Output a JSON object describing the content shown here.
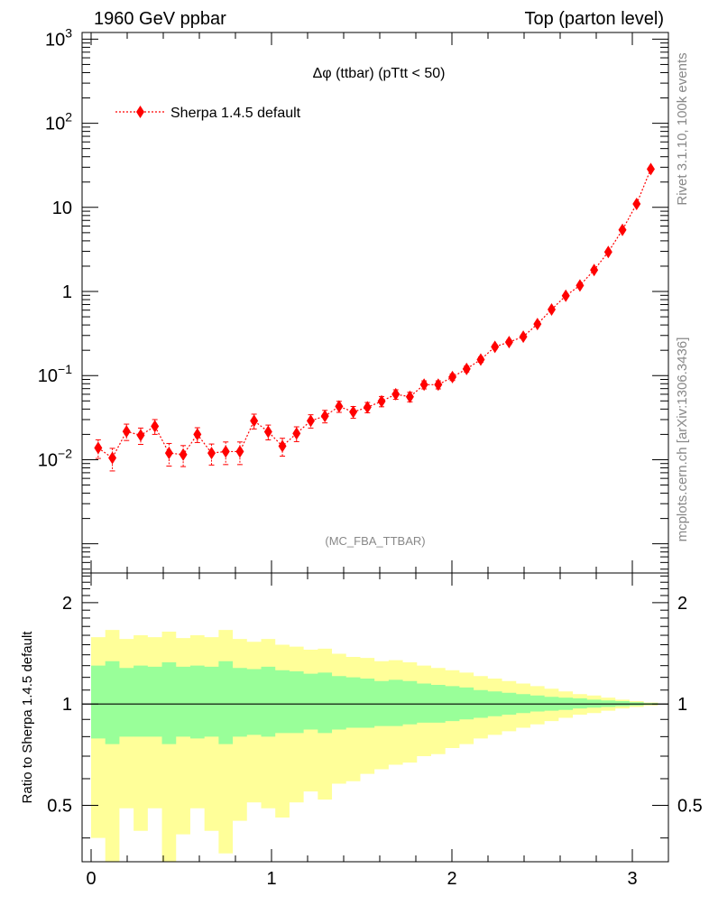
{
  "header": {
    "left": "1960 GeV ppbar",
    "right": "Top (parton level)"
  },
  "side_labels": {
    "rivet": "Rivet 3.1.10,  100k events",
    "mcplots": "mcplots.cern.ch [arXiv:1306.3436]"
  },
  "colors": {
    "series": "#ff0000",
    "band_inner": "#99ff99",
    "band_outer": "#ffff99",
    "reference_line": "#000000"
  },
  "chart_data": [
    {
      "type": "scatter",
      "title": "Δφ (ttbar) (pTtt < 50)",
      "title_symbol": "Δφ",
      "title_text": " (ttbar) (pTtt < 50)",
      "analysis_label": "(MC_FBA_TTBAR)",
      "xlabel": "",
      "ylabel": "",
      "y_scale": "log",
      "xlim": [
        -0.05,
        3.2
      ],
      "ylim": [
        0.00045,
        1200
      ],
      "y_ticks": [
        {
          "value": 0.01,
          "base": "10",
          "exp": "−2"
        },
        {
          "value": 0.1,
          "base": "10",
          "exp": "−1"
        },
        {
          "value": 1,
          "base": "1",
          "exp": ""
        },
        {
          "value": 10,
          "base": "10",
          "exp": ""
        },
        {
          "value": 100,
          "base": "10",
          "exp": "2"
        },
        {
          "value": 1000,
          "base": "10",
          "exp": "3"
        }
      ],
      "legend_position": "top-left",
      "series": [
        {
          "name": "Sherpa 1.4.5 default",
          "x": [
            0.0393,
            0.1178,
            0.1963,
            0.2749,
            0.3534,
            0.432,
            0.5105,
            0.589,
            0.6676,
            0.7461,
            0.8247,
            0.9032,
            0.9817,
            1.0603,
            1.1388,
            1.2174,
            1.2959,
            1.3744,
            1.453,
            1.5315,
            1.6101,
            1.6886,
            1.7671,
            1.8457,
            1.9242,
            2.0028,
            2.0813,
            2.1598,
            2.2384,
            2.3169,
            2.3955,
            2.474,
            2.5525,
            2.6311,
            2.7096,
            2.7882,
            2.8667,
            2.9452,
            3.0238,
            3.1023
          ],
          "values": [
            0.0138,
            0.0105,
            0.0217,
            0.0195,
            0.025,
            0.012,
            0.0115,
            0.02,
            0.012,
            0.0125,
            0.0125,
            0.029,
            0.0215,
            0.0145,
            0.0205,
            0.029,
            0.033,
            0.043,
            0.037,
            0.042,
            0.0495,
            0.06,
            0.056,
            0.078,
            0.078,
            0.096,
            0.12,
            0.155,
            0.22,
            0.25,
            0.29,
            0.41,
            0.61,
            0.89,
            1.18,
            1.8,
            2.95,
            5.4,
            11.0,
            28.5
          ],
          "rel_err": [
            0.25,
            0.3,
            0.22,
            0.22,
            0.2,
            0.3,
            0.28,
            0.2,
            0.28,
            0.3,
            0.3,
            0.2,
            0.2,
            0.24,
            0.2,
            0.18,
            0.17,
            0.15,
            0.16,
            0.14,
            0.14,
            0.13,
            0.13,
            0.11,
            0.11,
            0.09,
            0.08,
            0.07,
            0.06,
            0.06,
            0.05,
            0.045,
            0.035,
            0.03,
            0.025,
            0.02,
            0.016,
            0.012,
            0.008,
            0.005
          ]
        }
      ]
    },
    {
      "type": "area",
      "ylabel": "Ratio to Sherpa 1.4.5 default",
      "y_scale": "log",
      "xlim": [
        -0.05,
        3.2
      ],
      "ylim": [
        0.34,
        2.45
      ],
      "x_ticks": [
        0,
        1,
        2,
        3
      ],
      "y_ticks": [
        0.5,
        1,
        2
      ],
      "reference_value": 1,
      "bin_edges": [
        0.0,
        0.0785,
        0.1571,
        0.2356,
        0.3142,
        0.3927,
        0.4712,
        0.5498,
        0.6283,
        0.7069,
        0.7854,
        0.8639,
        0.9425,
        1.021,
        1.0996,
        1.1781,
        1.2566,
        1.3352,
        1.4137,
        1.4923,
        1.5708,
        1.6493,
        1.7279,
        1.8064,
        1.885,
        1.9635,
        2.042,
        2.1206,
        2.1991,
        2.2777,
        2.3562,
        2.4347,
        2.5133,
        2.5918,
        2.6704,
        2.7489,
        2.8274,
        2.906,
        2.9845,
        3.0631,
        3.1416
      ],
      "inner_band": {
        "lower": [
          0.79,
          0.76,
          0.8,
          0.8,
          0.8,
          0.76,
          0.8,
          0.79,
          0.8,
          0.76,
          0.8,
          0.81,
          0.8,
          0.82,
          0.82,
          0.84,
          0.82,
          0.84,
          0.85,
          0.85,
          0.86,
          0.86,
          0.87,
          0.88,
          0.88,
          0.89,
          0.9,
          0.91,
          0.92,
          0.93,
          0.94,
          0.95,
          0.955,
          0.96,
          0.97,
          0.975,
          0.98,
          0.985,
          0.99,
          0.995
        ],
        "upper": [
          1.3,
          1.34,
          1.28,
          1.3,
          1.29,
          1.33,
          1.29,
          1.3,
          1.29,
          1.34,
          1.28,
          1.27,
          1.29,
          1.26,
          1.25,
          1.23,
          1.24,
          1.21,
          1.2,
          1.19,
          1.17,
          1.18,
          1.17,
          1.15,
          1.14,
          1.13,
          1.12,
          1.1,
          1.09,
          1.08,
          1.07,
          1.06,
          1.05,
          1.045,
          1.04,
          1.03,
          1.025,
          1.02,
          1.012,
          1.006
        ]
      },
      "outer_band": {
        "lower": [
          0.4,
          0.34,
          0.49,
          0.42,
          0.49,
          0.34,
          0.41,
          0.49,
          0.42,
          0.36,
          0.45,
          0.51,
          0.49,
          0.46,
          0.51,
          0.55,
          0.52,
          0.58,
          0.59,
          0.62,
          0.64,
          0.66,
          0.67,
          0.7,
          0.71,
          0.74,
          0.76,
          0.79,
          0.81,
          0.83,
          0.85,
          0.87,
          0.89,
          0.91,
          0.93,
          0.94,
          0.955,
          0.97,
          0.98,
          0.99
        ],
        "upper": [
          1.58,
          1.66,
          1.56,
          1.6,
          1.58,
          1.64,
          1.57,
          1.6,
          1.58,
          1.66,
          1.56,
          1.53,
          1.56,
          1.5,
          1.48,
          1.45,
          1.46,
          1.41,
          1.38,
          1.37,
          1.34,
          1.35,
          1.33,
          1.3,
          1.28,
          1.26,
          1.24,
          1.21,
          1.19,
          1.17,
          1.15,
          1.13,
          1.11,
          1.09,
          1.07,
          1.06,
          1.045,
          1.03,
          1.02,
          1.01
        ]
      }
    }
  ]
}
